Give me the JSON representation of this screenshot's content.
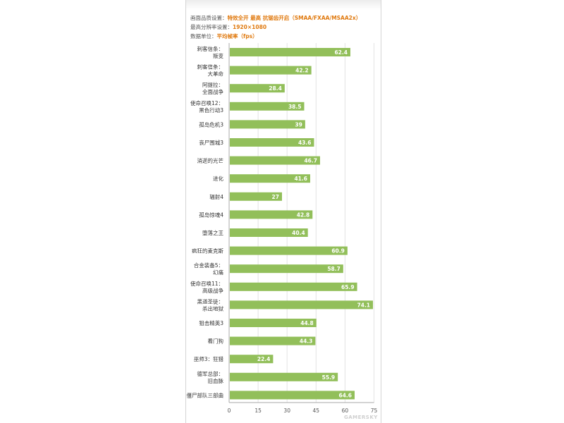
{
  "info": {
    "settings_label": "画面品质设置：",
    "settings_value": "特效全开  最高  抗锯齿开启（SMAA/FXAA/MSAA2x）",
    "resolution_label": "最高分辨率设置：",
    "resolution_value": "1920×1080",
    "unit_label": "数据单位：",
    "unit_value": "平均帧率（fps）"
  },
  "watermark": "GAMERSKY",
  "colors": {
    "bar": "#92bf5a",
    "grid": "#e3e3e3",
    "axis": "#aaaaaa"
  },
  "chart_data": {
    "type": "bar",
    "orientation": "horizontal",
    "categories": [
      [
        "刺客信条：",
        "叛变"
      ],
      [
        "刺客信条：",
        "大革命"
      ],
      [
        "阿提拉：",
        "全面战争"
      ],
      [
        "使命召唤12：",
        "黑色行动3"
      ],
      [
        "孤岛危机3"
      ],
      [
        "丧尸围城3"
      ],
      [
        "消逝的光芒"
      ],
      [
        "进化"
      ],
      [
        "辐射4"
      ],
      [
        "孤岛惊魂4"
      ],
      [
        "堕落之王"
      ],
      [
        "疯狂的麦克斯"
      ],
      [
        "合金装备5：",
        "幻痛"
      ],
      [
        "使命召唤11：",
        "高级战争"
      ],
      [
        "黑道圣徒：",
        "杀出地狱"
      ],
      [
        "狙击精英3"
      ],
      [
        "看门狗"
      ],
      [
        "巫师3：狂猎"
      ],
      [
        "德军总部：",
        "旧血脉"
      ],
      [
        "僵尸部队三部曲"
      ]
    ],
    "values": [
      62.4,
      42.2,
      28.4,
      38.5,
      39,
      43.6,
      46.7,
      41.6,
      27,
      42.8,
      40.4,
      60.9,
      58.7,
      65.9,
      74.1,
      44.8,
      44.3,
      22.4,
      55.9,
      64.6
    ],
    "value_labels": [
      "62.4",
      "42.2",
      "28.4",
      "38.5",
      "39",
      "43.6",
      "46.7",
      "41.6",
      "27",
      "42.8",
      "40.4",
      "60.9",
      "58.7",
      "65.9",
      "74.1",
      "44.8",
      "44.3",
      "22.4",
      "55.9",
      "64.6"
    ],
    "xticks": [
      "0",
      "15",
      "30",
      "45",
      "60",
      "75"
    ],
    "xlim": [
      0,
      75
    ],
    "grid": true
  }
}
